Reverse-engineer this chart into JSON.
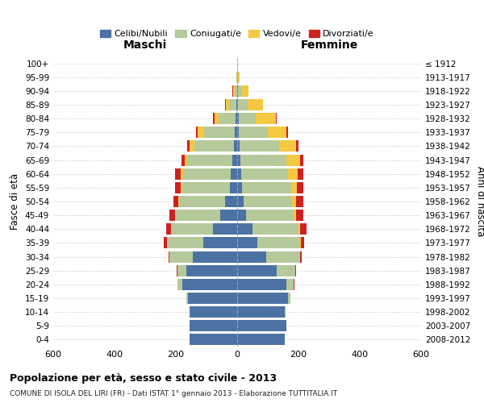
{
  "age_groups": [
    "0-4",
    "5-9",
    "10-14",
    "15-19",
    "20-24",
    "25-29",
    "30-34",
    "35-39",
    "40-44",
    "45-49",
    "50-54",
    "55-59",
    "60-64",
    "65-69",
    "70-74",
    "75-79",
    "80-84",
    "85-89",
    "90-94",
    "95-99",
    "100+"
  ],
  "birth_years": [
    "2008-2012",
    "2003-2007",
    "1998-2002",
    "1993-1997",
    "1988-1992",
    "1983-1987",
    "1978-1982",
    "1973-1977",
    "1968-1972",
    "1963-1967",
    "1958-1962",
    "1953-1957",
    "1948-1952",
    "1943-1947",
    "1938-1942",
    "1933-1937",
    "1928-1932",
    "1923-1927",
    "1918-1922",
    "1913-1917",
    "≤ 1912"
  ],
  "males": {
    "celibe": [
      155,
      155,
      155,
      160,
      180,
      165,
      145,
      110,
      80,
      55,
      40,
      25,
      22,
      15,
      10,
      8,
      5,
      2,
      1,
      0,
      0
    ],
    "coniugato": [
      0,
      0,
      0,
      5,
      15,
      30,
      75,
      120,
      135,
      145,
      150,
      155,
      155,
      145,
      130,
      100,
      55,
      25,
      8,
      2,
      0
    ],
    "vedovo": [
      0,
      0,
      0,
      0,
      0,
      0,
      0,
      0,
      1,
      2,
      3,
      5,
      8,
      12,
      15,
      20,
      15,
      10,
      5,
      1,
      0
    ],
    "divorziato": [
      0,
      0,
      0,
      0,
      1,
      2,
      5,
      10,
      15,
      20,
      15,
      18,
      18,
      10,
      8,
      5,
      3,
      2,
      1,
      0,
      0
    ]
  },
  "females": {
    "nubile": [
      155,
      160,
      155,
      165,
      160,
      130,
      95,
      65,
      50,
      30,
      20,
      15,
      12,
      10,
      8,
      5,
      5,
      3,
      2,
      0,
      0
    ],
    "coniugata": [
      0,
      0,
      2,
      8,
      25,
      60,
      110,
      140,
      150,
      155,
      160,
      160,
      155,
      150,
      130,
      95,
      55,
      30,
      10,
      2,
      0
    ],
    "vedova": [
      0,
      0,
      0,
      0,
      0,
      0,
      1,
      2,
      5,
      8,
      12,
      20,
      30,
      45,
      55,
      60,
      65,
      50,
      25,
      5,
      2
    ],
    "divorziata": [
      0,
      0,
      0,
      0,
      1,
      2,
      5,
      12,
      20,
      22,
      25,
      22,
      20,
      12,
      8,
      5,
      3,
      2,
      1,
      0,
      0
    ]
  },
  "colors": {
    "celibe": "#4c72a4",
    "coniugato": "#b5c99a",
    "vedovo": "#f5c842",
    "divorziato": "#cc2222"
  },
  "xlim": 600,
  "title": "Popolazione per età, sesso e stato civile - 2013",
  "subtitle": "COMUNE DI ISOLA DEL LIRI (FR) - Dati ISTAT 1° gennaio 2013 - Elaborazione TUTTITALIA.IT",
  "xlabel_left": "Maschi",
  "xlabel_right": "Femmine",
  "ylabel_left": "Fasce di età",
  "ylabel_right": "Anni di nascita",
  "legend_labels": [
    "Celibi/Nubili",
    "Coniugati/e",
    "Vedovi/e",
    "Divorziati/e"
  ],
  "background_color": "#ffffff",
  "grid_color": "#c8c8c8"
}
